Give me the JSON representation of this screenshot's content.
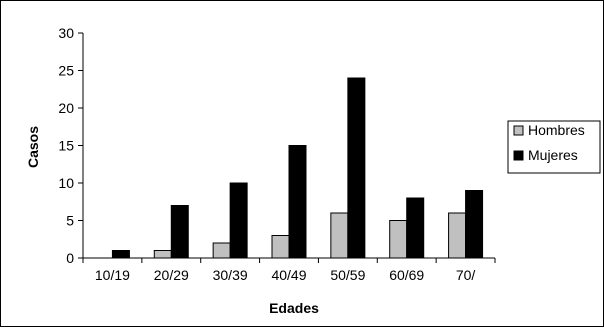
{
  "chart_data": {
    "type": "bar",
    "title": "",
    "xlabel": "Edades",
    "ylabel": "Casos",
    "categories": [
      "10/19",
      "20/29",
      "30/39",
      "40/49",
      "50/59",
      "60/69",
      "70/"
    ],
    "ylim": [
      0,
      30
    ],
    "yticks": [
      "0",
      "5",
      "10",
      "15",
      "20",
      "25",
      "30"
    ],
    "grid": false,
    "legend_position": "right",
    "series": [
      {
        "name": "Hombres",
        "values": [
          0,
          1,
          2,
          3,
          6,
          5,
          6
        ],
        "color": "#c0c0c0"
      },
      {
        "name": "Mujeres",
        "values": [
          1,
          7,
          10,
          15,
          24,
          8,
          9
        ],
        "color": "#000000"
      }
    ]
  }
}
